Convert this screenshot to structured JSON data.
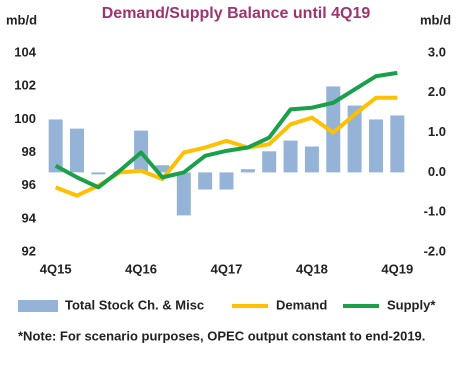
{
  "chart_data": {
    "type": "combo",
    "title": "Demand/Supply Balance until 4Q19",
    "y_label": "mb/d",
    "y2_label": "mb/d",
    "categories": [
      "4Q15",
      null,
      null,
      null,
      "4Q16",
      null,
      null,
      null,
      "4Q17",
      null,
      null,
      null,
      "4Q18",
      null,
      null,
      null,
      "4Q19"
    ],
    "series": [
      {
        "name": "Total Stock Ch. & Misc",
        "type": "bar",
        "axis": "y2",
        "color": "#95b3d7",
        "values": [
          1.33,
          1.1,
          -0.05,
          0.02,
          1.05,
          0.18,
          -1.08,
          -0.43,
          -0.43,
          0.08,
          0.53,
          0.8,
          0.65,
          2.16,
          1.68,
          1.33,
          1.43
        ]
      },
      {
        "name": "Demand",
        "type": "line",
        "axis": "y",
        "color": "#ffc000",
        "values": [
          95.9,
          95.4,
          96.0,
          96.8,
          96.9,
          96.4,
          98.0,
          98.3,
          98.7,
          98.3,
          98.5,
          99.7,
          100.1,
          99.2,
          100.3,
          101.3,
          101.3
        ]
      },
      {
        "name": "Supply*",
        "type": "line",
        "axis": "y",
        "color": "#1aa04a",
        "values": [
          97.2,
          96.5,
          95.9,
          96.9,
          98.0,
          96.5,
          96.8,
          97.8,
          98.1,
          98.3,
          98.9,
          100.6,
          100.7,
          101.0,
          101.8,
          102.6,
          102.8
        ]
      }
    ],
    "ylim": [
      92,
      104
    ],
    "yticks": [
      92,
      94,
      96,
      98,
      100,
      102,
      104
    ],
    "y2lim": [
      -2,
      3
    ],
    "y2ticks": [
      {
        "value": -2,
        "label": "-2.0"
      },
      {
        "value": -1,
        "label": "-1.0"
      },
      {
        "value": 0,
        "label": "0.0"
      },
      {
        "value": 1,
        "label": "1.0"
      },
      {
        "value": 2,
        "label": "2.0"
      },
      {
        "value": 3,
        "label": "3.0"
      }
    ],
    "grid": false,
    "legend": "bottom",
    "note": "*Note: For scenario purposes, OPEC output constant to end-2019."
  }
}
